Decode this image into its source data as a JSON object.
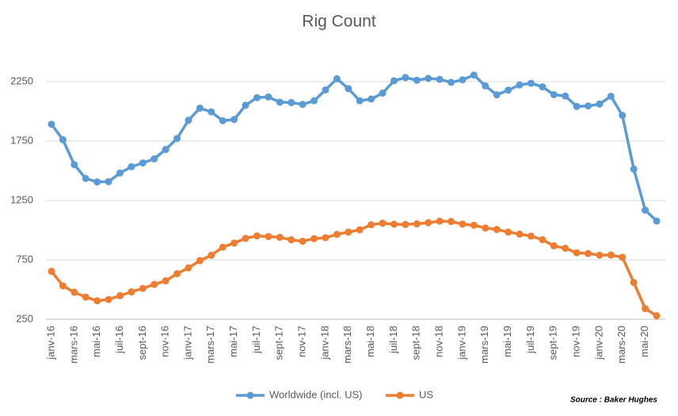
{
  "chart_data": {
    "type": "line",
    "title": "Rig Count",
    "categories": [
      "janv-16",
      null,
      "mars-16",
      null,
      "mai-16",
      null,
      "juil-16",
      null,
      "sept-16",
      null,
      "nov-16",
      null,
      "janv-17",
      null,
      "mars-17",
      null,
      "mai-17",
      null,
      "juil-17",
      null,
      "sept-17",
      null,
      "nov-17",
      null,
      "janv-18",
      null,
      "mars-18",
      null,
      "mai-18",
      null,
      "juil-18",
      null,
      "sept-18",
      null,
      "nov-18",
      null,
      "janv-19",
      null,
      "mars-19",
      null,
      "mai-19",
      null,
      "juil-19",
      null,
      "sept-19",
      null,
      "nov-19",
      null,
      "janv-20",
      null,
      "mars-20",
      null,
      "mai-20",
      null
    ],
    "series": [
      {
        "name": "Worldwide (incl. US)",
        "color": "#5b9bd5",
        "values": [
          1891,
          1761,
          1551,
          1435,
          1406,
          1408,
          1481,
          1534,
          1566,
          1600,
          1679,
          1772,
          1925,
          2027,
          1995,
          1921,
          1931,
          2051,
          2115,
          2121,
          2077,
          2074,
          2058,
          2089,
          2180,
          2274,
          2191,
          2089,
          2103,
          2153,
          2257,
          2284,
          2262,
          2277,
          2269,
          2244,
          2265,
          2305,
          2214,
          2139,
          2178,
          2222,
          2236,
          2206,
          2140,
          2129,
          2041,
          2045,
          2061,
          2127,
          1966,
          1514,
          1169,
          1077
        ]
      },
      {
        "name": "US",
        "color": "#ed7d31",
        "values": [
          654,
          532,
          478,
          437,
          406,
          417,
          449,
          481,
          510,
          544,
          574,
          634,
          683,
          744,
          789,
          857,
          892,
          931,
          952,
          947,
          940,
          919,
          907,
          929,
          937,
          965,
          984,
          1003,
          1046,
          1059,
          1050,
          1048,
          1053,
          1063,
          1076,
          1073,
          1051,
          1042,
          1018,
          1006,
          984,
          967,
          950,
          920,
          868,
          848,
          810,
          804,
          790,
          791,
          772,
          560,
          340,
          280
        ]
      }
    ],
    "ylim": [
      250,
      2500
    ],
    "yticks": [
      250,
      750,
      1250,
      1750,
      2250
    ],
    "grid": true,
    "legend": "bottom",
    "annotation": "Source : Baker Hughes"
  }
}
